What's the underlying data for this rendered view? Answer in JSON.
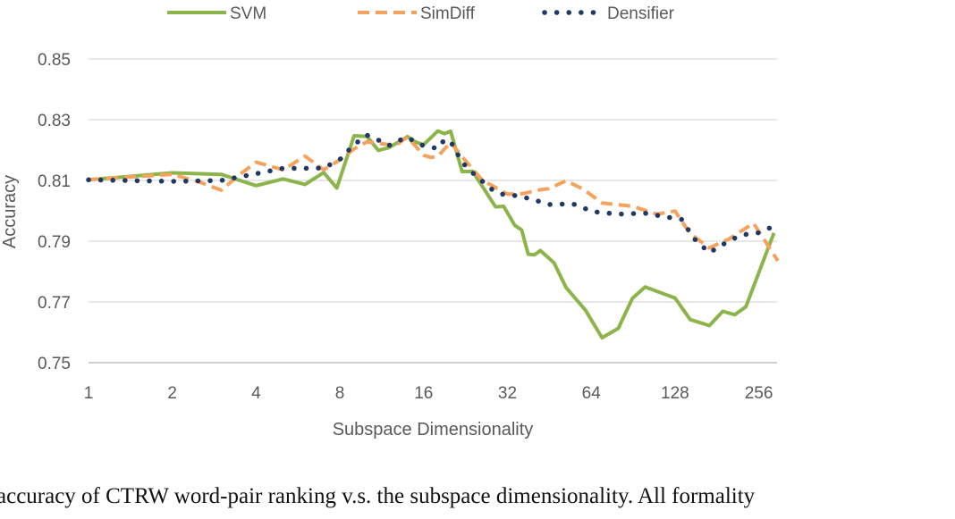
{
  "chart_data": {
    "type": "line",
    "xlabel": "Subspace Dimensionality",
    "ylabel": "Accuracy",
    "x_scale": "log2",
    "xlim": [
      1,
      300
    ],
    "ylim": [
      0.75,
      0.85
    ],
    "x_ticks": [
      1,
      2,
      4,
      8,
      16,
      32,
      64,
      128,
      256
    ],
    "x_tick_labels": [
      "1",
      "2",
      "4",
      "8",
      "16",
      "32",
      "64",
      "128",
      "256"
    ],
    "y_ticks": [
      0.75,
      0.77,
      0.79,
      0.81,
      0.83,
      0.85
    ],
    "y_tick_labels": [
      "0.75",
      "0.77",
      "0.79",
      "0.81",
      "0.83",
      "0.85"
    ],
    "grid": "horizontal",
    "legend_position": "top",
    "series": [
      {
        "name": "SVM",
        "color": "#8BB54A",
        "style": "solid",
        "points": [
          [
            1,
            0.8102
          ],
          [
            2,
            0.8125
          ],
          [
            3,
            0.812
          ],
          [
            4,
            0.8083
          ],
          [
            5,
            0.8105
          ],
          [
            6,
            0.8087
          ],
          [
            7,
            0.8126
          ],
          [
            7.8,
            0.8075
          ],
          [
            9,
            0.8247
          ],
          [
            10,
            0.8245
          ],
          [
            11,
            0.8199
          ],
          [
            12,
            0.8208
          ],
          [
            14,
            0.8244
          ],
          [
            15,
            0.8226
          ],
          [
            16,
            0.8218
          ],
          [
            18,
            0.8263
          ],
          [
            19,
            0.8254
          ],
          [
            20,
            0.8262
          ],
          [
            22,
            0.8129
          ],
          [
            24,
            0.813
          ],
          [
            29,
            0.8013
          ],
          [
            31,
            0.8015
          ],
          [
            34,
            0.7952
          ],
          [
            36,
            0.7937
          ],
          [
            38,
            0.7857
          ],
          [
            40,
            0.7855
          ],
          [
            42,
            0.7869
          ],
          [
            47,
            0.7829
          ],
          [
            52,
            0.7747
          ],
          [
            61,
            0.7673
          ],
          [
            70,
            0.7582
          ],
          [
            80,
            0.7613
          ],
          [
            90,
            0.7712
          ],
          [
            100,
            0.7749
          ],
          [
            128,
            0.7713
          ],
          [
            145,
            0.7642
          ],
          [
            170,
            0.7622
          ],
          [
            190,
            0.7669
          ],
          [
            210,
            0.7658
          ],
          [
            230,
            0.7684
          ],
          [
            290,
            0.7927
          ]
        ]
      },
      {
        "name": "SimDiff",
        "color": "#F4A25E",
        "style": "dashed",
        "points": [
          [
            1,
            0.8103
          ],
          [
            2,
            0.812
          ],
          [
            2.5,
            0.8095
          ],
          [
            3,
            0.8068
          ],
          [
            3.5,
            0.812
          ],
          [
            4,
            0.816
          ],
          [
            5,
            0.8135
          ],
          [
            6,
            0.818
          ],
          [
            7,
            0.8135
          ],
          [
            8,
            0.8168
          ],
          [
            9,
            0.8204
          ],
          [
            10,
            0.8227
          ],
          [
            12,
            0.8218
          ],
          [
            13,
            0.8222
          ],
          [
            14,
            0.8243
          ],
          [
            16,
            0.8183
          ],
          [
            17,
            0.8176
          ],
          [
            18,
            0.8179
          ],
          [
            20,
            0.8226
          ],
          [
            22,
            0.8178
          ],
          [
            26,
            0.8101
          ],
          [
            32,
            0.8055
          ],
          [
            36,
            0.8056
          ],
          [
            42,
            0.8069
          ],
          [
            45,
            0.8073
          ],
          [
            52,
            0.8099
          ],
          [
            60,
            0.8071
          ],
          [
            70,
            0.8026
          ],
          [
            90,
            0.8015
          ],
          [
            110,
            0.7989
          ],
          [
            128,
            0.7999
          ],
          [
            145,
            0.7925
          ],
          [
            170,
            0.7878
          ],
          [
            200,
            0.7907
          ],
          [
            245,
            0.7959
          ],
          [
            300,
            0.7835
          ]
        ]
      },
      {
        "name": "Densifier",
        "color": "#203864",
        "style": "dotted",
        "points": [
          [
            1,
            0.8102
          ],
          [
            2,
            0.8097
          ],
          [
            3,
            0.81
          ],
          [
            4,
            0.8122
          ],
          [
            5,
            0.814
          ],
          [
            6,
            0.814
          ],
          [
            7,
            0.8141
          ],
          [
            8,
            0.8169
          ],
          [
            9,
            0.8218
          ],
          [
            10,
            0.8249
          ],
          [
            11,
            0.8233
          ],
          [
            12,
            0.8215
          ],
          [
            13,
            0.8231
          ],
          [
            14,
            0.8242
          ],
          [
            15,
            0.8225
          ],
          [
            16,
            0.8214
          ],
          [
            18,
            0.8205
          ],
          [
            19,
            0.8234
          ],
          [
            20,
            0.8228
          ],
          [
            22,
            0.816
          ],
          [
            24,
            0.8125
          ],
          [
            28,
            0.8072
          ],
          [
            30,
            0.8056
          ],
          [
            35,
            0.8049
          ],
          [
            40,
            0.8036
          ],
          [
            45,
            0.8021
          ],
          [
            55,
            0.8023
          ],
          [
            65,
            0.7997
          ],
          [
            80,
            0.7989
          ],
          [
            100,
            0.7992
          ],
          [
            120,
            0.7979
          ],
          [
            135,
            0.7972
          ],
          [
            150,
            0.7908
          ],
          [
            170,
            0.7862
          ],
          [
            190,
            0.7889
          ],
          [
            220,
            0.792
          ],
          [
            256,
            0.7928
          ],
          [
            300,
            0.7955
          ]
        ]
      }
    ]
  },
  "caption": "accuracy of CTRW word-pair ranking v.s.  the subspace dimensionality.  All formality"
}
